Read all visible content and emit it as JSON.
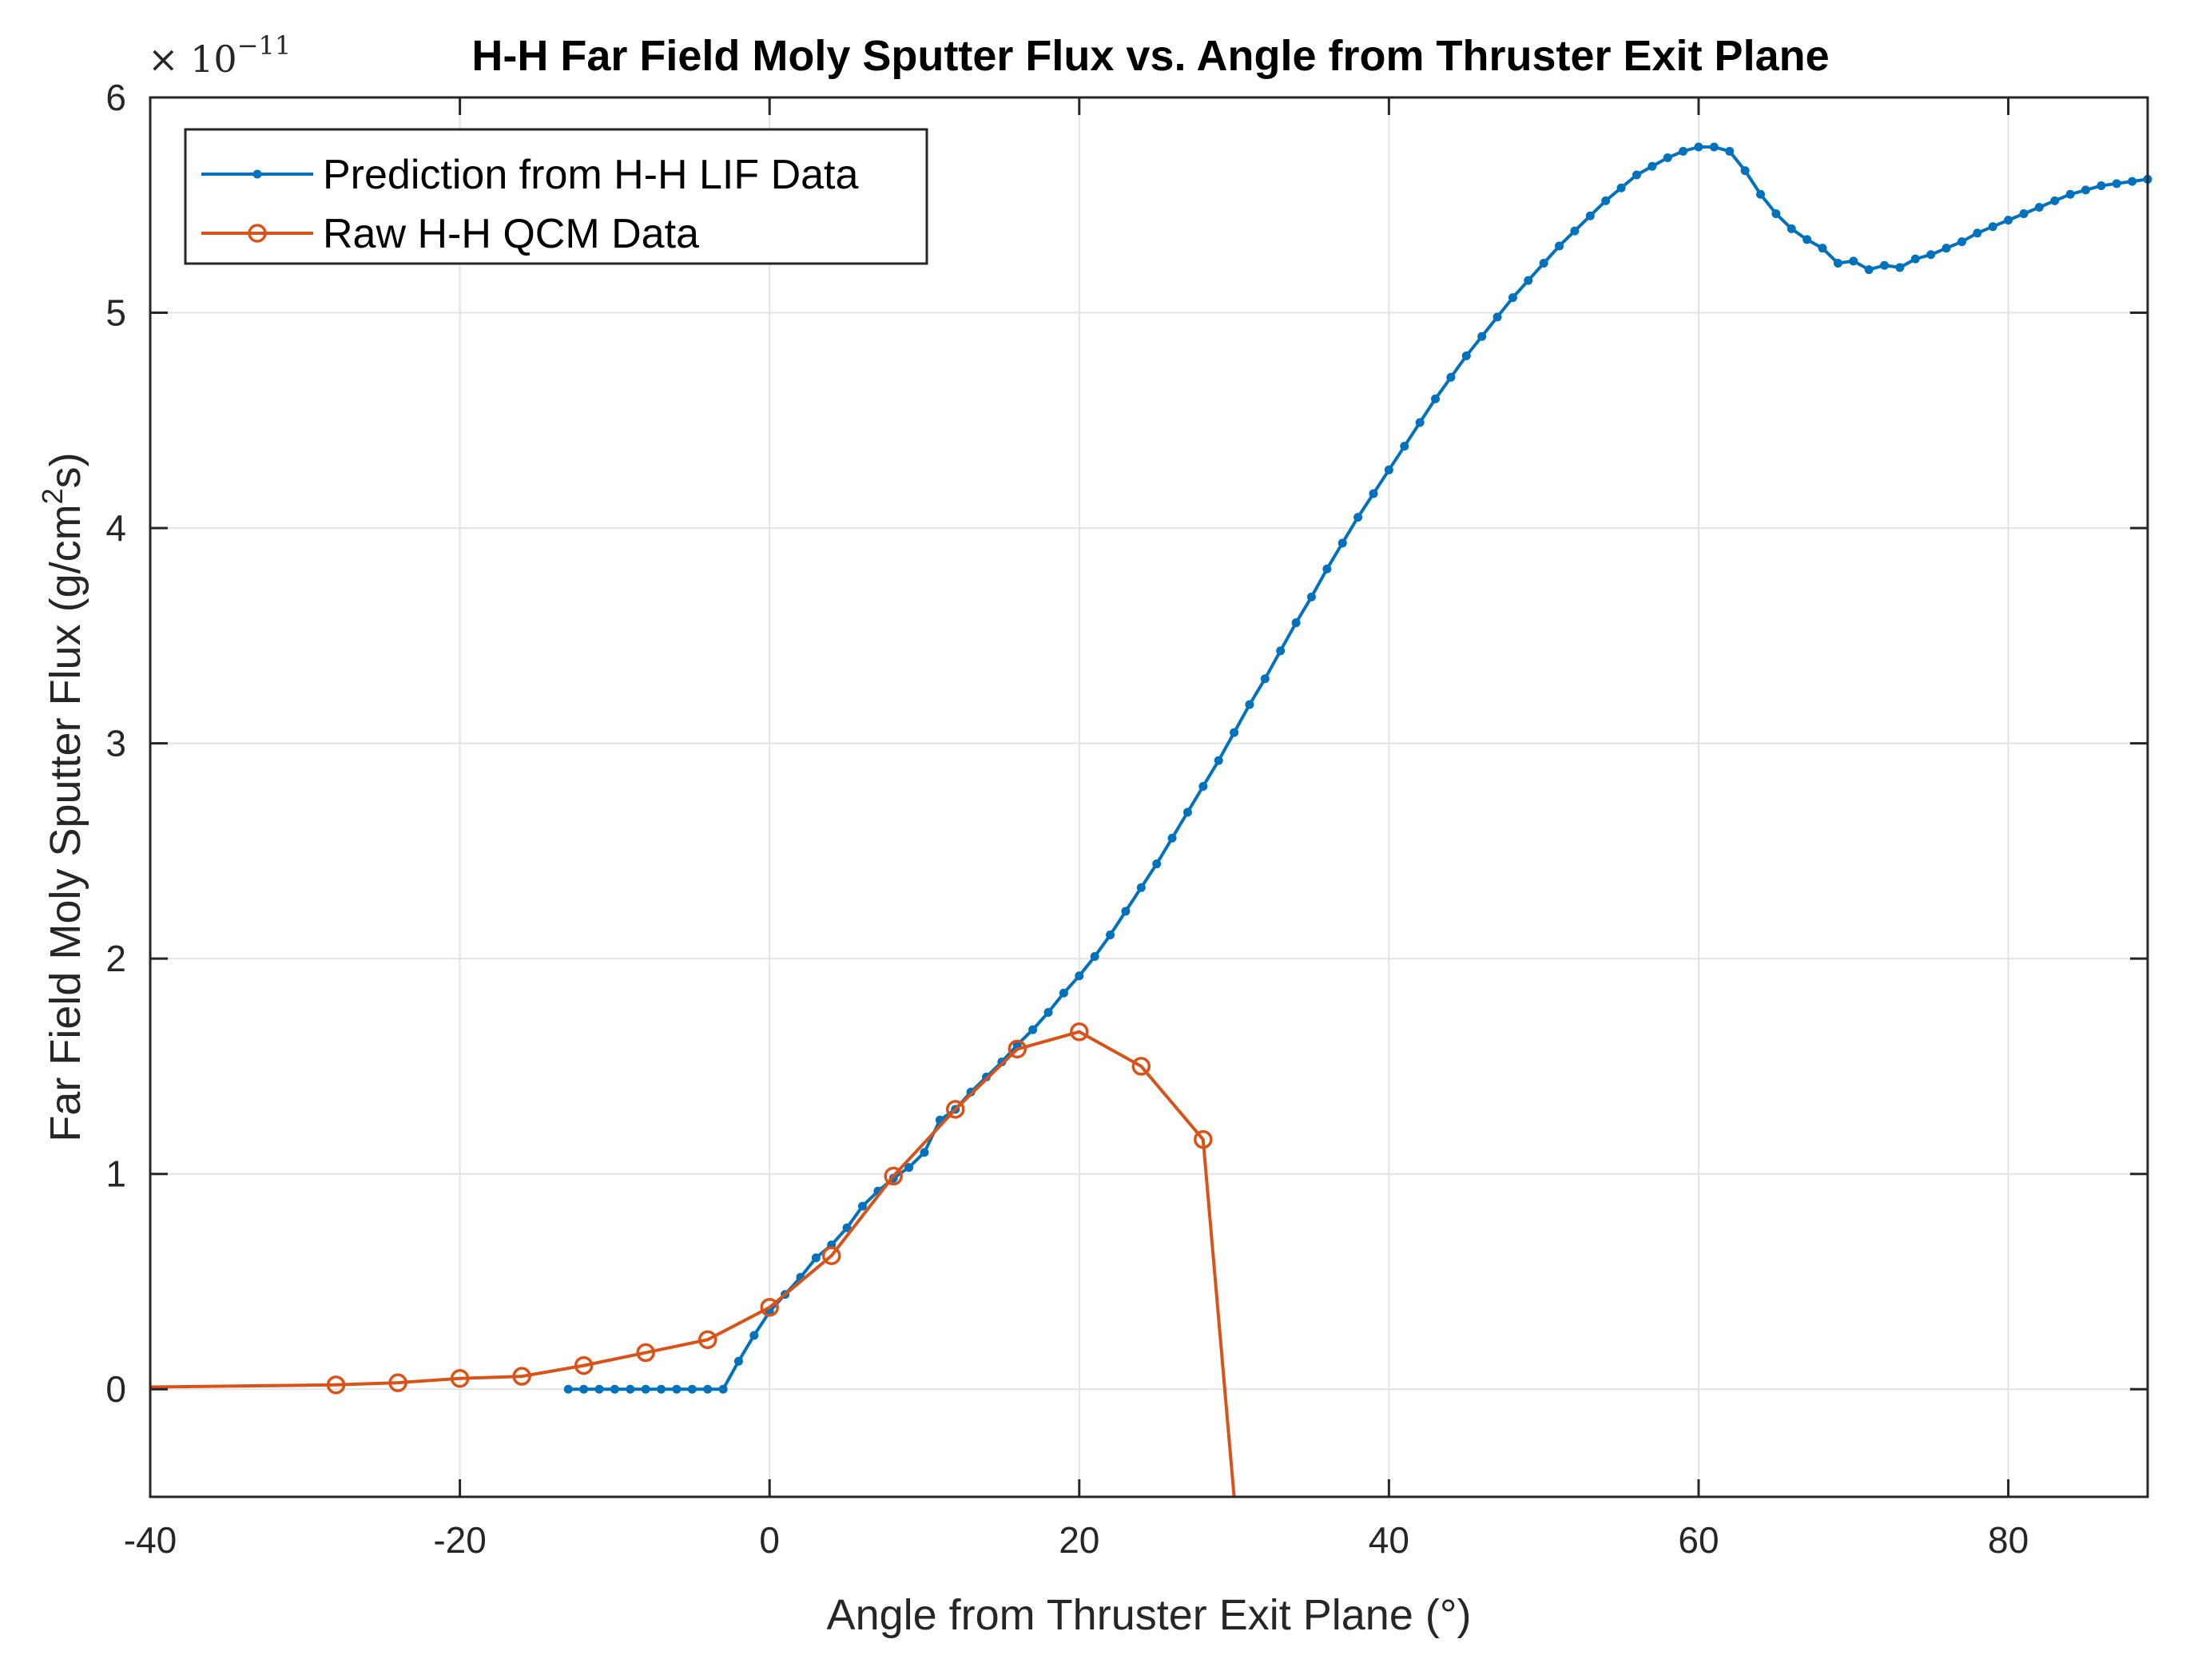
{
  "chart_data": {
    "type": "line",
    "title": "H-H Far Field Moly Sputter Flux vs. Angle from Thruster Exit Plane",
    "xlabel": "Angle from Thruster Exit Plane (°)",
    "ylabel_prefix": "Far Field Moly Sputter Flux (g/cm",
    "ylabel_sup": "2",
    "ylabel_suffix": "s)",
    "y_multiplier_base": "× 10",
    "y_multiplier_exp": "−11",
    "xlim": [
      -40,
      89
    ],
    "ylim": [
      -0.5,
      6
    ],
    "xticks": [
      -40,
      -20,
      0,
      20,
      40,
      60,
      80
    ],
    "yticks": [
      0,
      1,
      2,
      3,
      4,
      5,
      6
    ],
    "grid": true,
    "legend_position": "top-left",
    "colors": {
      "prediction": "#0072BD",
      "raw": "#D95319",
      "axis": "#262626",
      "grid": "#e3e3e3"
    },
    "series": [
      {
        "name": "Prediction from H-H LIF Data",
        "marker": "dot",
        "x": [
          -13,
          -12,
          -11,
          -10,
          -9,
          -8,
          -7,
          -6,
          -5,
          -4,
          -3,
          -2,
          -1,
          0,
          1,
          2,
          3,
          4,
          5,
          6,
          7,
          8,
          9,
          10,
          11,
          12,
          13,
          14,
          15,
          16,
          17,
          18,
          19,
          20,
          21,
          22,
          23,
          24,
          25,
          26,
          27,
          28,
          29,
          30,
          31,
          32,
          33,
          34,
          35,
          36,
          37,
          38,
          39,
          40,
          41,
          42,
          43,
          44,
          45,
          46,
          47,
          48,
          49,
          50,
          51,
          52,
          53,
          54,
          55,
          56,
          57,
          58,
          59,
          60,
          61,
          62,
          63,
          64,
          65,
          66,
          67,
          68,
          69,
          70,
          71,
          72,
          73,
          74,
          75,
          76,
          77,
          78,
          79,
          80,
          81,
          82,
          83,
          84,
          85,
          86,
          87,
          88,
          89
        ],
        "y": [
          0,
          0,
          0,
          0,
          0,
          0,
          0,
          0,
          0,
          0,
          0,
          0.13,
          0.25,
          0.36,
          0.44,
          0.52,
          0.61,
          0.67,
          0.75,
          0.85,
          0.92,
          0.98,
          1.03,
          1.1,
          1.25,
          1.3,
          1.38,
          1.45,
          1.52,
          1.6,
          1.67,
          1.75,
          1.84,
          1.92,
          2.01,
          2.11,
          2.22,
          2.33,
          2.44,
          2.56,
          2.68,
          2.8,
          2.92,
          3.05,
          3.18,
          3.3,
          3.43,
          3.56,
          3.68,
          3.81,
          3.93,
          4.05,
          4.16,
          4.27,
          4.38,
          4.49,
          4.6,
          4.7,
          4.8,
          4.89,
          4.98,
          5.07,
          5.15,
          5.23,
          5.31,
          5.38,
          5.45,
          5.52,
          5.58,
          5.64,
          5.68,
          5.72,
          5.75,
          5.77,
          5.77,
          5.75,
          5.66,
          5.55,
          5.46,
          5.39,
          5.34,
          5.3,
          5.23,
          5.24,
          5.2,
          5.22,
          5.21,
          5.25,
          5.27,
          5.3,
          5.33,
          5.37,
          5.4,
          5.43,
          5.46,
          5.49,
          5.52,
          5.55,
          5.57,
          5.59,
          5.6,
          5.61,
          5.62
        ]
      },
      {
        "name": "Raw H-H QCM Data",
        "marker": "circle",
        "x": [
          -40,
          -28,
          -24,
          -20,
          -16,
          -12,
          -8,
          -4,
          0,
          4,
          8,
          12,
          16,
          20,
          24,
          28,
          30
        ],
        "y": [
          0.01,
          0.02,
          0.03,
          0.05,
          0.06,
          0.11,
          0.17,
          0.23,
          0.38,
          0.62,
          0.99,
          1.3,
          1.58,
          1.66,
          1.5,
          1.16,
          -0.5
        ],
        "marker_mask": [
          false,
          true,
          true,
          true,
          true,
          true,
          true,
          true,
          true,
          true,
          true,
          true,
          true,
          true,
          true,
          true,
          false
        ]
      }
    ]
  }
}
